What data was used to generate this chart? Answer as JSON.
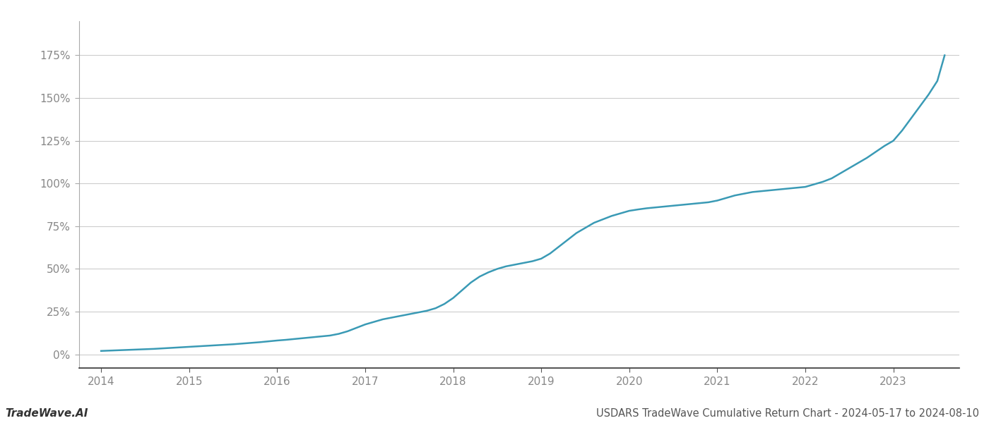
{
  "title": "USDARS TradeWave Cumulative Return Chart - 2024-05-17 to 2024-08-10",
  "watermark": "TradeWave.AI",
  "line_color": "#3a9ab5",
  "line_width": 1.8,
  "background_color": "#ffffff",
  "grid_color": "#cccccc",
  "x_years": [
    2014.0,
    2014.1,
    2014.2,
    2014.3,
    2014.4,
    2014.5,
    2014.6,
    2014.7,
    2014.8,
    2014.9,
    2015.0,
    2015.1,
    2015.2,
    2015.3,
    2015.4,
    2015.5,
    2015.6,
    2015.7,
    2015.8,
    2015.9,
    2016.0,
    2016.1,
    2016.2,
    2016.3,
    2016.4,
    2016.5,
    2016.6,
    2016.7,
    2016.8,
    2016.9,
    2017.0,
    2017.1,
    2017.2,
    2017.3,
    2017.4,
    2017.5,
    2017.6,
    2017.7,
    2017.8,
    2017.9,
    2018.0,
    2018.1,
    2018.2,
    2018.3,
    2018.4,
    2018.5,
    2018.6,
    2018.7,
    2018.8,
    2018.9,
    2019.0,
    2019.1,
    2019.2,
    2019.3,
    2019.4,
    2019.5,
    2019.6,
    2019.7,
    2019.8,
    2019.9,
    2020.0,
    2020.1,
    2020.2,
    2020.3,
    2020.4,
    2020.5,
    2020.6,
    2020.7,
    2020.8,
    2020.9,
    2021.0,
    2021.1,
    2021.2,
    2021.3,
    2021.4,
    2021.5,
    2021.6,
    2021.7,
    2021.8,
    2021.9,
    2022.0,
    2022.1,
    2022.2,
    2022.3,
    2022.4,
    2022.5,
    2022.6,
    2022.7,
    2022.8,
    2022.9,
    2023.0,
    2023.1,
    2023.2,
    2023.3,
    2023.4,
    2023.5,
    2023.583
  ],
  "y_values": [
    2.0,
    2.2,
    2.4,
    2.6,
    2.8,
    3.0,
    3.2,
    3.5,
    3.8,
    4.1,
    4.4,
    4.7,
    5.0,
    5.3,
    5.6,
    5.9,
    6.3,
    6.7,
    7.1,
    7.6,
    8.1,
    8.5,
    9.0,
    9.5,
    10.0,
    10.5,
    11.0,
    12.0,
    13.5,
    15.5,
    17.5,
    19.0,
    20.5,
    21.5,
    22.5,
    23.5,
    24.5,
    25.5,
    27.0,
    29.5,
    33.0,
    37.5,
    42.0,
    45.5,
    48.0,
    50.0,
    51.5,
    52.5,
    53.5,
    54.5,
    56.0,
    59.0,
    63.0,
    67.0,
    71.0,
    74.0,
    77.0,
    79.0,
    81.0,
    82.5,
    84.0,
    84.8,
    85.5,
    86.0,
    86.5,
    87.0,
    87.5,
    88.0,
    88.5,
    89.0,
    90.0,
    91.5,
    93.0,
    94.0,
    95.0,
    95.5,
    96.0,
    96.5,
    97.0,
    97.5,
    98.0,
    99.5,
    101.0,
    103.0,
    106.0,
    109.0,
    112.0,
    115.0,
    118.5,
    122.0,
    125.0,
    131.0,
    138.0,
    145.0,
    152.0,
    160.0,
    175.0
  ],
  "ytick_values": [
    0,
    25,
    50,
    75,
    100,
    125,
    150,
    175
  ],
  "ytick_labels": [
    "0%",
    "25%",
    "50%",
    "75%",
    "100%",
    "125%",
    "150%",
    "175%"
  ],
  "xtick_values": [
    2014,
    2015,
    2016,
    2017,
    2018,
    2019,
    2020,
    2021,
    2022,
    2023
  ],
  "xtick_labels": [
    "2014",
    "2015",
    "2016",
    "2017",
    "2018",
    "2019",
    "2020",
    "2021",
    "2022",
    "2023"
  ],
  "xlim": [
    2013.75,
    2023.75
  ],
  "ylim": [
    -8,
    195
  ],
  "tick_fontsize": 11,
  "label_color": "#888888",
  "watermark_fontsize": 11,
  "title_fontsize": 10.5
}
